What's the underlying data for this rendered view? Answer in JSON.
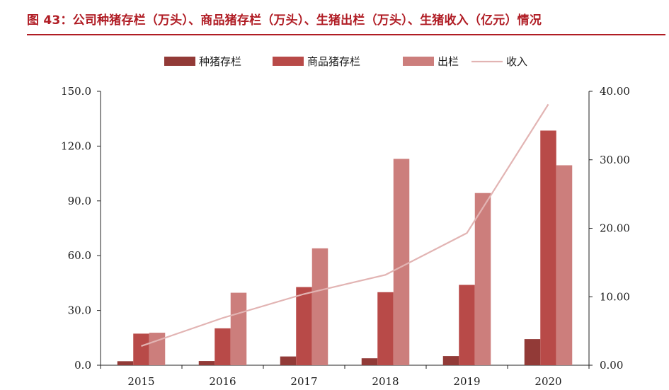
{
  "title": "图 43：公司种猪存栏（万头）、商品猪存栏（万头）、生猪出栏（万头）、生猪收入（亿元）情况",
  "colors": {
    "title": "#b01c24",
    "series": [
      "#923a37",
      "#b84a48",
      "#cc7e7c",
      "#e2b4b3"
    ]
  },
  "chart_data": {
    "type": "bar",
    "categories": [
      "2015",
      "2016",
      "2017",
      "2018",
      "2019",
      "2020"
    ],
    "series": [
      {
        "name": "种猪存栏",
        "type": "bar",
        "axis": "left",
        "values": [
          2.2,
          2.3,
          4.8,
          3.8,
          5.0,
          14.3
        ]
      },
      {
        "name": "商品猪存栏",
        "type": "bar",
        "axis": "left",
        "values": [
          17.3,
          20.2,
          42.8,
          40.0,
          44.0,
          128.5
        ]
      },
      {
        "name": "出栏",
        "type": "bar",
        "axis": "left",
        "values": [
          17.8,
          39.7,
          64.0,
          113.0,
          94.3,
          109.5
        ]
      },
      {
        "name": "收入",
        "type": "line",
        "axis": "right",
        "values": [
          2.8,
          6.9,
          10.4,
          13.2,
          19.3,
          38.1
        ]
      }
    ],
    "y_left": {
      "ylim": [
        0,
        150
      ],
      "ticks": [
        "0.0",
        "30.0",
        "60.0",
        "90.0",
        "120.0",
        "150.0"
      ]
    },
    "y_right": {
      "ylim": [
        0,
        40
      ],
      "ticks": [
        "0.00",
        "10.00",
        "20.00",
        "30.00",
        "40.00"
      ]
    },
    "legend": "top-center",
    "grid": false
  }
}
